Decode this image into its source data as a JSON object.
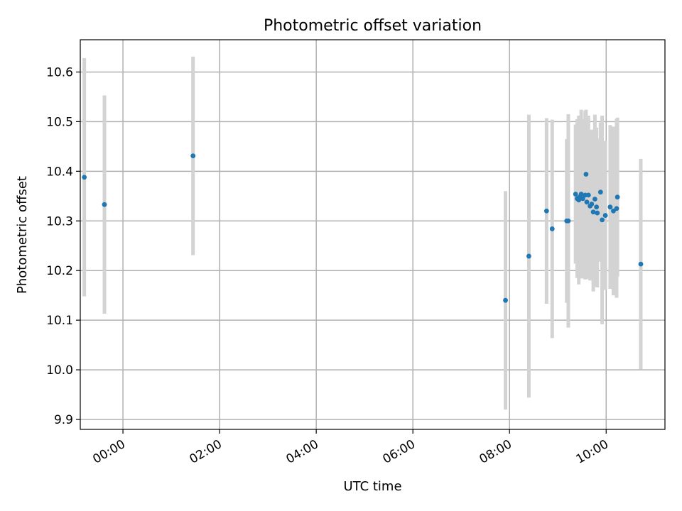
{
  "chart_data": {
    "type": "scatter",
    "title": "Photometric offset variation",
    "xlabel": "UTC time",
    "ylabel": "Photometric offset",
    "x_unit": "UTC time (HH:MM)",
    "xlim": [
      "23:07",
      "11:13"
    ],
    "ylim": [
      9.88,
      10.665
    ],
    "x_ticks": [
      "00:00",
      "02:00",
      "04:00",
      "06:00",
      "08:00",
      "10:00"
    ],
    "y_ticks": [
      "9.9",
      "10.0",
      "10.1",
      "10.2",
      "10.3",
      "10.4",
      "10.5",
      "10.6"
    ],
    "grid": true,
    "colors": {
      "points": "#1f77b4",
      "error_bars": "#d3d3d3",
      "grid": "#b0b0b0",
      "axes": "#000000"
    },
    "series": [
      {
        "points": [
          {
            "x": "23:12",
            "y": 10.388,
            "err": 0.24
          },
          {
            "x": "23:37",
            "y": 10.333,
            "err": 0.22
          },
          {
            "x": "01:27",
            "y": 10.431,
            "err": 0.2
          },
          {
            "x": "07:55",
            "y": 10.14,
            "err": 0.22
          },
          {
            "x": "08:24",
            "y": 10.229,
            "err": 0.285
          },
          {
            "x": "08:46",
            "y": 10.32,
            "err": 0.187
          },
          {
            "x": "08:53",
            "y": 10.284,
            "err": 0.22
          },
          {
            "x": "09:11",
            "y": 10.3,
            "err": 0.165
          },
          {
            "x": "09:13",
            "y": 10.3,
            "err": 0.215
          },
          {
            "x": "09:22",
            "y": 10.354,
            "err": 0.14
          },
          {
            "x": "09:24",
            "y": 10.345,
            "err": 0.16
          },
          {
            "x": "09:26",
            "y": 10.342,
            "err": 0.17
          },
          {
            "x": "09:27",
            "y": 10.348,
            "err": 0.155
          },
          {
            "x": "09:29",
            "y": 10.354,
            "err": 0.17
          },
          {
            "x": "09:31",
            "y": 10.345,
            "err": 0.16
          },
          {
            "x": "09:34",
            "y": 10.352,
            "err": 0.17
          },
          {
            "x": "09:35",
            "y": 10.394,
            "err": 0.13
          },
          {
            "x": "09:36",
            "y": 10.338,
            "err": 0.155
          },
          {
            "x": "09:38",
            "y": 10.352,
            "err": 0.16
          },
          {
            "x": "09:40",
            "y": 10.33,
            "err": 0.15
          },
          {
            "x": "09:42",
            "y": 10.334,
            "err": 0.15
          },
          {
            "x": "09:44",
            "y": 10.318,
            "err": 0.16
          },
          {
            "x": "09:46",
            "y": 10.344,
            "err": 0.17
          },
          {
            "x": "09:48",
            "y": 10.328,
            "err": 0.16
          },
          {
            "x": "09:49",
            "y": 10.316,
            "err": 0.15
          },
          {
            "x": "09:53",
            "y": 10.358,
            "err": 0.14
          },
          {
            "x": "09:55",
            "y": 10.302,
            "err": 0.21
          },
          {
            "x": "09:59",
            "y": 10.311,
            "err": 0.15
          },
          {
            "x": "10:05",
            "y": 10.328,
            "err": 0.165
          },
          {
            "x": "10:09",
            "y": 10.32,
            "err": 0.17
          },
          {
            "x": "10:13",
            "y": 10.325,
            "err": 0.18
          },
          {
            "x": "10:14",
            "y": 10.348,
            "err": 0.16
          },
          {
            "x": "10:43",
            "y": 10.213,
            "err": 0.212
          }
        ]
      }
    ]
  }
}
